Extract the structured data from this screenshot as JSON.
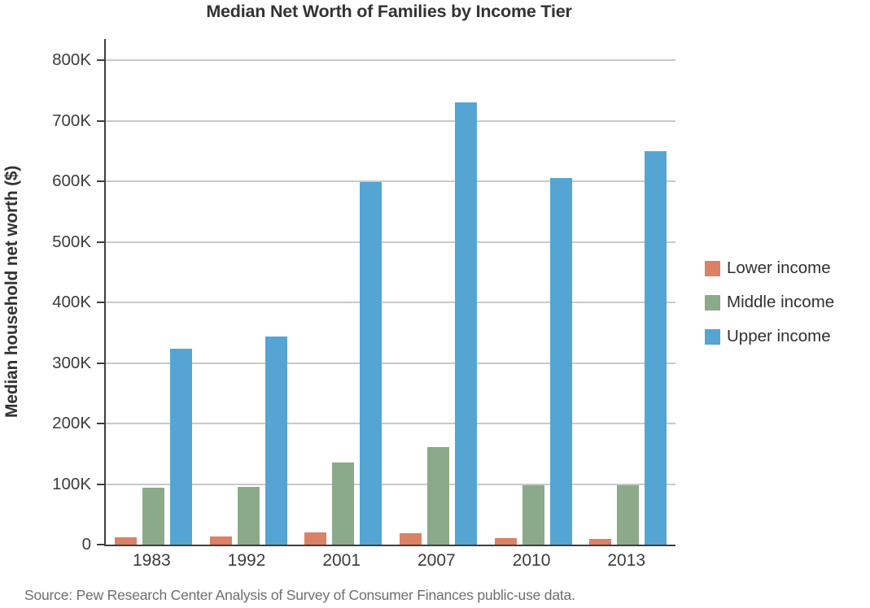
{
  "source_note": "Source: Pew Research Center Analysis of Survey of Consumer Finances public-use data.",
  "colors": {
    "lower_income": "#db8165",
    "middle_income": "#8baa89",
    "upper_income": "#54a5d3",
    "axis": "#3e3e3e",
    "gridline": "#c9c9c9",
    "title_text": "#333333",
    "tick_text": "#3c3c3c",
    "source_text": "#6e6e6e"
  },
  "chart_data": {
    "type": "bar",
    "title": "Median Net Worth of Families by Income Tier",
    "xlabel": "",
    "ylabel": "Median household net worth ($)",
    "categories": [
      "1983",
      "1992",
      "2001",
      "2007",
      "2010",
      "2013"
    ],
    "series": [
      {
        "name": "Lower income",
        "color": "#db8165",
        "values": [
          11500,
          14000,
          20000,
          18500,
          11000,
          9500
        ]
      },
      {
        "name": "Middle income",
        "color": "#8baa89",
        "values": [
          94000,
          95000,
          136000,
          161000,
          98000,
          98000
        ]
      },
      {
        "name": "Upper income",
        "color": "#54a5d3",
        "values": [
          323000,
          344000,
          599000,
          730000,
          605000,
          650000
        ]
      }
    ],
    "ylim": [
      0,
      800000
    ],
    "yticks": [
      {
        "label": "0",
        "value": 0
      },
      {
        "label": "100K",
        "value": 100000
      },
      {
        "label": "200K",
        "value": 200000
      },
      {
        "label": "300K",
        "value": 300000
      },
      {
        "label": "400K",
        "value": 400000
      },
      {
        "label": "500K",
        "value": 500000
      },
      {
        "label": "600K",
        "value": 600000
      },
      {
        "label": "700K",
        "value": 700000
      },
      {
        "label": "800K",
        "value": 800000
      }
    ],
    "grid": true,
    "legend_position": "right",
    "values_unit": "USD"
  }
}
